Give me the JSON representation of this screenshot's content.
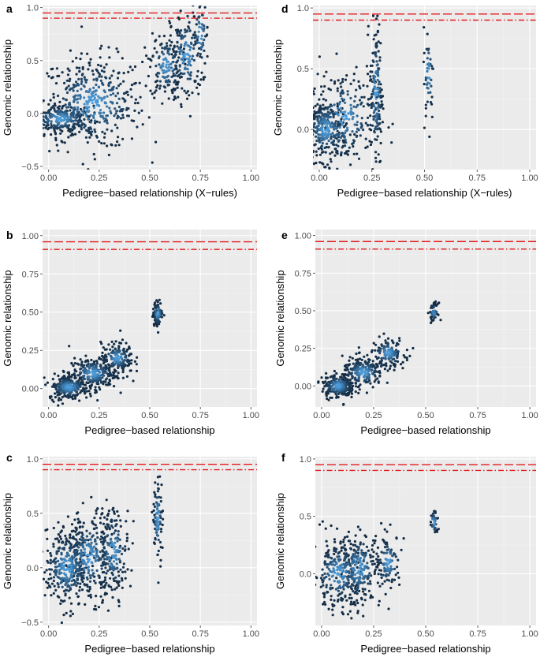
{
  "colors": {
    "panel_bg": "#ebebeb",
    "grid_major": "#ffffff",
    "grid_minor": "#f4f4f4",
    "threshold_line": "#e31a1c",
    "density_low": "#132b43",
    "density_high": "#56b1f7"
  },
  "chart_data": [
    {
      "id": "a",
      "type": "scatter",
      "panel_label": "a",
      "xlabel": "Pedigree−based relationship (X−rules)",
      "ylabel": "Genomic relationship",
      "xlim": [
        -0.03,
        1.03
      ],
      "ylim": [
        -0.53,
        1.02
      ],
      "xticks": [
        0.0,
        0.25,
        0.5,
        0.75,
        1.0
      ],
      "xtick_labels": [
        "0.00",
        "0.25",
        "0.50",
        "0.75",
        "1.00"
      ],
      "yticks": [
        -0.5,
        0.0,
        0.5,
        1.0
      ],
      "ytick_labels": [
        "−0.5",
        "0.0",
        "0.5",
        "1.0"
      ],
      "hlines": [
        {
          "y": 0.95,
          "style": "longdash"
        },
        {
          "y": 0.9,
          "style": "dashdot"
        }
      ],
      "clusters": [
        {
          "x": 0.06,
          "y": -0.05,
          "sx": 0.08,
          "sy": 0.07,
          "n": 260
        },
        {
          "x": 0.22,
          "y": 0.1,
          "sx": 0.13,
          "sy": 0.22,
          "n": 420
        },
        {
          "x": 0.58,
          "y": 0.45,
          "sx": 0.04,
          "sy": 0.16,
          "n": 160
        },
        {
          "x": 0.68,
          "y": 0.55,
          "sx": 0.04,
          "sy": 0.22,
          "n": 140
        },
        {
          "x": 0.75,
          "y": 0.75,
          "sx": 0.02,
          "sy": 0.18,
          "n": 60
        }
      ]
    },
    {
      "id": "d",
      "type": "scatter",
      "panel_label": "d",
      "xlabel": "Pedigree−based relationship (X−rules)",
      "ylabel": "Genomic relationship",
      "xlim": [
        -0.03,
        1.03
      ],
      "ylim": [
        -0.33,
        1.02
      ],
      "xticks": [
        0.0,
        0.25,
        0.5,
        0.75,
        1.0
      ],
      "xtick_labels": [
        "0.00",
        "0.25",
        "0.50",
        "0.75",
        "1.00"
      ],
      "yticks": [
        0.0,
        0.5,
        1.0
      ],
      "ytick_labels": [
        "0.0",
        "0.5",
        "1.0"
      ],
      "hlines": [
        {
          "y": 0.95,
          "style": "longdash"
        },
        {
          "y": 0.9,
          "style": "dashdot"
        }
      ],
      "clusters": [
        {
          "x": 0.03,
          "y": 0.0,
          "sx": 0.05,
          "sy": 0.13,
          "n": 300
        },
        {
          "x": 0.12,
          "y": 0.1,
          "sx": 0.08,
          "sy": 0.2,
          "n": 220
        },
        {
          "x": 0.27,
          "y": 0.3,
          "sx": 0.015,
          "sy": 0.3,
          "n": 160
        },
        {
          "x": 0.52,
          "y": 0.45,
          "sx": 0.012,
          "sy": 0.2,
          "n": 45
        }
      ]
    },
    {
      "id": "b",
      "type": "scatter",
      "panel_label": "b",
      "xlabel": "Pedigree−based relationship",
      "ylabel": "Genomic relationship",
      "xlim": [
        -0.03,
        1.03
      ],
      "ylim": [
        -0.12,
        1.04
      ],
      "xticks": [
        0.0,
        0.25,
        0.5,
        0.75,
        1.0
      ],
      "xtick_labels": [
        "0.00",
        "0.25",
        "0.50",
        "0.75",
        "1.00"
      ],
      "yticks": [
        0.0,
        0.25,
        0.5,
        0.75,
        1.0
      ],
      "ytick_labels": [
        "0.00",
        "0.25",
        "0.50",
        "0.75",
        "1.00"
      ],
      "hlines": [
        {
          "y": 0.96,
          "style": "longdash"
        },
        {
          "y": 0.91,
          "style": "dashdot"
        }
      ],
      "clusters": [
        {
          "x": 0.1,
          "y": 0.01,
          "sx": 0.05,
          "sy": 0.04,
          "n": 240
        },
        {
          "x": 0.22,
          "y": 0.1,
          "sx": 0.06,
          "sy": 0.05,
          "n": 240
        },
        {
          "x": 0.34,
          "y": 0.2,
          "sx": 0.04,
          "sy": 0.05,
          "n": 160
        },
        {
          "x": 0.54,
          "y": 0.49,
          "sx": 0.012,
          "sy": 0.04,
          "n": 90
        }
      ]
    },
    {
      "id": "e",
      "type": "scatter",
      "panel_label": "e",
      "xlabel": "Pedigree−based relationship",
      "ylabel": "Genomic relationship",
      "xlim": [
        -0.03,
        1.03
      ],
      "ylim": [
        -0.14,
        1.04
      ],
      "xticks": [
        0.0,
        0.25,
        0.5,
        0.75,
        1.0
      ],
      "xtick_labels": [
        "0.00",
        "0.25",
        "0.50",
        "0.75",
        "1.00"
      ],
      "yticks": [
        0.0,
        0.25,
        0.5,
        0.75,
        1.0
      ],
      "ytick_labels": [
        "0.00",
        "0.25",
        "0.50",
        "0.75",
        "1.00"
      ],
      "hlines": [
        {
          "y": 0.96,
          "style": "longdash"
        },
        {
          "y": 0.91,
          "style": "dashdot"
        }
      ],
      "clusters": [
        {
          "x": 0.08,
          "y": 0.0,
          "sx": 0.04,
          "sy": 0.04,
          "n": 220
        },
        {
          "x": 0.2,
          "y": 0.09,
          "sx": 0.05,
          "sy": 0.05,
          "n": 200
        },
        {
          "x": 0.32,
          "y": 0.22,
          "sx": 0.04,
          "sy": 0.05,
          "n": 130
        },
        {
          "x": 0.54,
          "y": 0.49,
          "sx": 0.01,
          "sy": 0.03,
          "n": 45
        }
      ]
    },
    {
      "id": "c",
      "type": "scatter",
      "panel_label": "c",
      "xlabel": "Pedigree−based relationship",
      "ylabel": "Genomic relationship",
      "xlim": [
        -0.03,
        1.03
      ],
      "ylim": [
        -0.53,
        1.02
      ],
      "xticks": [
        0.0,
        0.25,
        0.5,
        0.75,
        1.0
      ],
      "xtick_labels": [
        "0.00",
        "0.25",
        "0.50",
        "0.75",
        "1.00"
      ],
      "yticks": [
        -0.5,
        0.0,
        0.5,
        1.0
      ],
      "ytick_labels": [
        "−0.5",
        "0.0",
        "0.5",
        "1.0"
      ],
      "hlines": [
        {
          "y": 0.95,
          "style": "longdash"
        },
        {
          "y": 0.9,
          "style": "dashdot"
        }
      ],
      "clusters": [
        {
          "x": 0.09,
          "y": 0.0,
          "sx": 0.06,
          "sy": 0.18,
          "n": 320
        },
        {
          "x": 0.2,
          "y": 0.1,
          "sx": 0.06,
          "sy": 0.2,
          "n": 260
        },
        {
          "x": 0.32,
          "y": 0.15,
          "sx": 0.04,
          "sy": 0.2,
          "n": 180
        },
        {
          "x": 0.54,
          "y": 0.45,
          "sx": 0.012,
          "sy": 0.2,
          "n": 90
        }
      ]
    },
    {
      "id": "f",
      "type": "scatter",
      "panel_label": "f",
      "xlabel": "Pedigree−based relationship",
      "ylabel": "Genomic relationship",
      "xlim": [
        -0.03,
        1.03
      ],
      "ylim": [
        -0.45,
        1.02
      ],
      "xticks": [
        0.0,
        0.25,
        0.5,
        0.75,
        1.0
      ],
      "xtick_labels": [
        "0.00",
        "0.25",
        "0.50",
        "0.75",
        "1.00"
      ],
      "yticks": [
        0.0,
        0.5,
        1.0
      ],
      "ytick_labels": [
        "0.0",
        "0.5",
        "1.0"
      ],
      "hlines": [
        {
          "y": 0.95,
          "style": "longdash"
        },
        {
          "y": 0.9,
          "style": "dashdot"
        }
      ],
      "clusters": [
        {
          "x": 0.08,
          "y": 0.0,
          "sx": 0.06,
          "sy": 0.15,
          "n": 260
        },
        {
          "x": 0.18,
          "y": 0.05,
          "sx": 0.05,
          "sy": 0.16,
          "n": 200
        },
        {
          "x": 0.32,
          "y": 0.1,
          "sx": 0.03,
          "sy": 0.12,
          "n": 110
        },
        {
          "x": 0.54,
          "y": 0.45,
          "sx": 0.01,
          "sy": 0.06,
          "n": 35
        }
      ]
    }
  ]
}
